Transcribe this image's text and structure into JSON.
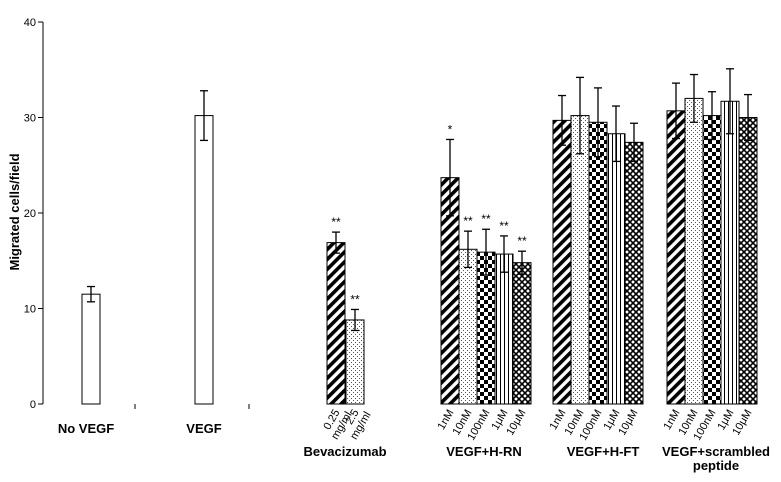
{
  "chart_data": {
    "type": "bar",
    "ylabel": "Migrated cells/field",
    "ylim": [
      0,
      40
    ],
    "yticks": [
      0,
      10,
      20,
      30,
      40
    ],
    "grid": false,
    "groups": [
      {
        "label": [
          "No VEGF"
        ],
        "bars": [
          {
            "sublabel": "",
            "value": 11.5,
            "err": 0.8,
            "pattern": "open",
            "sig": ""
          }
        ]
      },
      {
        "label": [
          "VEGF"
        ],
        "bars": [
          {
            "sublabel": "",
            "value": 30.2,
            "err": 2.6,
            "pattern": "open",
            "sig": ""
          }
        ]
      },
      {
        "label": [
          "Bevacizumab"
        ],
        "bars": [
          {
            "sublabel": "0.25 mg/ml",
            "value": 16.9,
            "err": 1.1,
            "pattern": "diagonal",
            "sig": "**"
          },
          {
            "sublabel": "2.5 mg/ml",
            "value": 8.8,
            "err": 1.1,
            "pattern": "dotted",
            "sig": "**"
          }
        ]
      },
      {
        "label": [
          "VEGF+H-RN"
        ],
        "bars": [
          {
            "sublabel": "1nM",
            "value": 23.7,
            "err": 4.0,
            "pattern": "diagonal",
            "sig": "*"
          },
          {
            "sublabel": "10nM",
            "value": 16.2,
            "err": 1.9,
            "pattern": "dotted",
            "sig": "**"
          },
          {
            "sublabel": "100nM",
            "value": 15.9,
            "err": 2.4,
            "pattern": "checker",
            "sig": "**"
          },
          {
            "sublabel": "1μM",
            "value": 15.7,
            "err": 1.9,
            "pattern": "vertical",
            "sig": "**"
          },
          {
            "sublabel": "10μM",
            "value": 14.8,
            "err": 1.2,
            "pattern": "crosshatch",
            "sig": "**"
          }
        ]
      },
      {
        "label": [
          "VEGF+H-FT"
        ],
        "bars": [
          {
            "sublabel": "1nM",
            "value": 29.7,
            "err": 2.6,
            "pattern": "diagonal",
            "sig": ""
          },
          {
            "sublabel": "10nM",
            "value": 30.2,
            "err": 4.0,
            "pattern": "dotted",
            "sig": ""
          },
          {
            "sublabel": "100nM",
            "value": 29.5,
            "err": 3.6,
            "pattern": "checker",
            "sig": ""
          },
          {
            "sublabel": "1μM",
            "value": 28.3,
            "err": 2.9,
            "pattern": "vertical",
            "sig": ""
          },
          {
            "sublabel": "10μM",
            "value": 27.4,
            "err": 2.0,
            "pattern": "crosshatch",
            "sig": ""
          }
        ]
      },
      {
        "label": [
          "VEGF+scrambled",
          "peptide"
        ],
        "bars": [
          {
            "sublabel": "1nM",
            "value": 30.7,
            "err": 2.9,
            "pattern": "diagonal",
            "sig": ""
          },
          {
            "sublabel": "10nM",
            "value": 32.0,
            "err": 2.5,
            "pattern": "dotted",
            "sig": ""
          },
          {
            "sublabel": "100nM",
            "value": 30.2,
            "err": 2.5,
            "pattern": "checker",
            "sig": ""
          },
          {
            "sublabel": "1μM",
            "value": 31.7,
            "err": 3.4,
            "pattern": "vertical",
            "sig": ""
          },
          {
            "sublabel": "10μM",
            "value": 30.0,
            "err": 2.4,
            "pattern": "crosshatch",
            "sig": ""
          }
        ]
      }
    ]
  }
}
